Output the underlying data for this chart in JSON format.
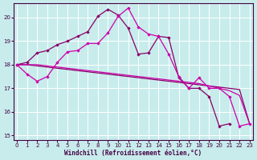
{
  "xlabel": "Windchill (Refroidissement éolien,°C)",
  "bg_color": "#c8ecec",
  "grid_color": "#b0dada",
  "line_color_bright": "#cc00aa",
  "line_color_dark": "#880066",
  "x_ticks": [
    0,
    1,
    2,
    3,
    4,
    5,
    6,
    7,
    8,
    9,
    10,
    11,
    12,
    13,
    14,
    15,
    16,
    17,
    18,
    19,
    20,
    21,
    22,
    23
  ],
  "ylim": [
    14.8,
    20.6
  ],
  "xlim": [
    -0.3,
    23.3
  ],
  "y_ticks": [
    15,
    16,
    17,
    18,
    19,
    20
  ],
  "series": {
    "s1_x": [
      0,
      1,
      2,
      3,
      4,
      5,
      6,
      7,
      8,
      9,
      10,
      11,
      12,
      13,
      14,
      15,
      16,
      17,
      18,
      19,
      20,
      21,
      22,
      23
    ],
    "s1_y": [
      18.0,
      18.1,
      18.5,
      18.6,
      18.85,
      19.0,
      19.2,
      19.4,
      20.05,
      20.35,
      20.1,
      19.55,
      18.45,
      18.5,
      19.2,
      19.15,
      17.45,
      17.0,
      17.0,
      16.65,
      15.4,
      15.5,
      null,
      null
    ],
    "s2_x": [
      0,
      1,
      2,
      3,
      4,
      5,
      6,
      7,
      8,
      9,
      10,
      11,
      12,
      13,
      14,
      15,
      16,
      17,
      18,
      19,
      20,
      21,
      22,
      23
    ],
    "s2_y": [
      18.0,
      18.0,
      17.95,
      17.9,
      17.85,
      17.8,
      17.75,
      17.7,
      17.65,
      17.6,
      17.55,
      17.5,
      17.45,
      17.4,
      17.35,
      17.3,
      17.25,
      17.2,
      17.15,
      17.1,
      17.05,
      17.0,
      16.95,
      15.5
    ],
    "s3_x": [
      0,
      1,
      2,
      3,
      4,
      5,
      6,
      7,
      8,
      9,
      10,
      11,
      12,
      13,
      14,
      15,
      16,
      17,
      18,
      19,
      20,
      21,
      22,
      23
    ],
    "s3_y": [
      18.0,
      18.0,
      18.0,
      17.95,
      17.9,
      17.85,
      17.8,
      17.75,
      17.7,
      17.65,
      17.6,
      17.55,
      17.5,
      17.45,
      17.4,
      17.35,
      17.3,
      17.25,
      17.2,
      17.1,
      17.0,
      16.9,
      16.7,
      15.5
    ],
    "s4_x": [
      0,
      1,
      2,
      3,
      4,
      5,
      6,
      7,
      8,
      9,
      10,
      11,
      12,
      13,
      14,
      15,
      16,
      17,
      18,
      19,
      20,
      21,
      22,
      23
    ],
    "s4_y": [
      18.0,
      17.6,
      17.3,
      17.5,
      18.1,
      18.55,
      18.6,
      18.9,
      18.9,
      19.35,
      20.05,
      20.4,
      19.6,
      19.3,
      19.2,
      18.45,
      17.5,
      17.0,
      17.45,
      17.0,
      17.0,
      16.65,
      15.4,
      15.5
    ]
  }
}
